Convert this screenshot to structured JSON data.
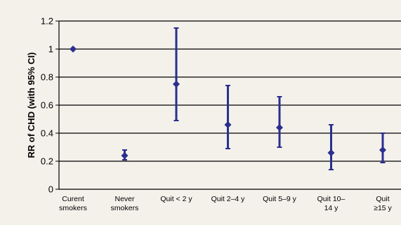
{
  "chart_data": {
    "type": "scatter",
    "title": "",
    "xlabel": "",
    "ylabel": "RR of CHD (with 95% CI)",
    "categories": [
      [
        "Curent",
        "smokers"
      ],
      [
        "Never",
        "smokers"
      ],
      [
        "Quit < 2 y"
      ],
      [
        "Quit 2–4 y"
      ],
      [
        "Quit 5–9 y"
      ],
      [
        "Quit 10–",
        "14 y"
      ],
      [
        "Quit",
        "≥15 y"
      ]
    ],
    "series": [
      {
        "point_estimate": [
          1.0,
          0.24,
          0.75,
          0.46,
          0.44,
          0.26,
          0.28
        ],
        "ci_lower": [
          1.0,
          0.21,
          0.49,
          0.29,
          0.3,
          0.14,
          0.19
        ],
        "ci_upper": [
          1.0,
          0.28,
          1.15,
          0.74,
          0.66,
          0.46,
          0.4
        ]
      }
    ],
    "ylim": [
      0,
      1.2
    ],
    "yticks": [
      0,
      0.2,
      0.4,
      0.6,
      0.8,
      1,
      1.2
    ],
    "ytick_labels": [
      "0",
      "0.2",
      "0.4",
      "0.6",
      "0.8",
      "1",
      "1.2"
    ],
    "grid": true,
    "legend": "none",
    "colors": {
      "marker": "#2b2f8f",
      "grid": "#000000",
      "background": "#f3f1ea"
    }
  }
}
